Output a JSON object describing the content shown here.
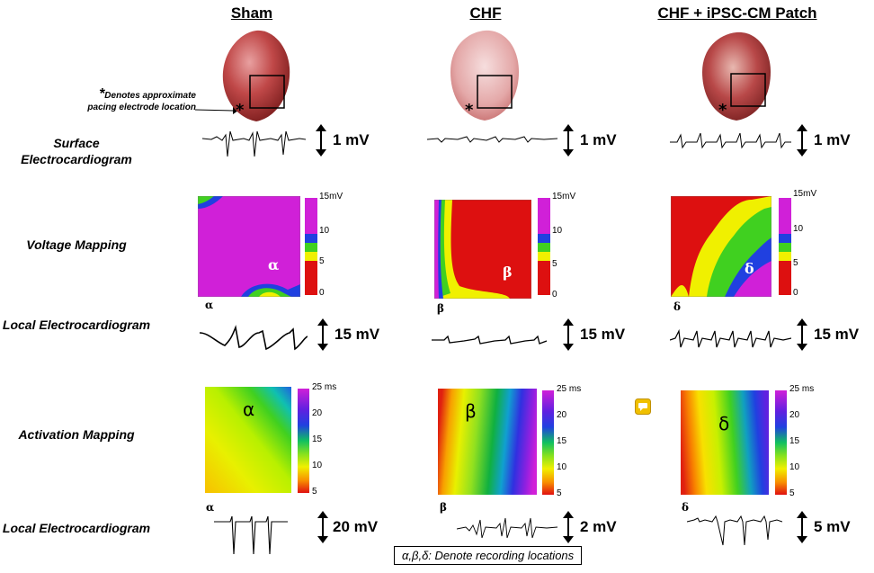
{
  "columns": [
    "Sham",
    "CHF",
    "CHF + iPSC-CM Patch"
  ],
  "rows": {
    "surface_ecg": "Surface Electrocardiogram",
    "voltage": "Voltage Mapping",
    "local_ecg_1": "Local Electrocardiogram",
    "activation": "Activation Mapping",
    "local_ecg_2": "Local Electrocardiogram"
  },
  "pacing_note_star": "*",
  "pacing_note": "Denotes approximate pacing electrode location",
  "surface_scales": [
    "1 mV",
    "1 mV",
    "1 mV"
  ],
  "local1_scales": [
    "15 mV",
    "15 mV",
    "15 mV"
  ],
  "local2_scales": [
    "20 mV",
    "2 mV",
    "5 mV"
  ],
  "location_labels": [
    "α",
    "β",
    "δ"
  ],
  "voltage_colorbar": {
    "unit": "mV",
    "ticks": [
      "15",
      "10",
      "5",
      "0"
    ]
  },
  "activation_colorbar": {
    "unit": "ms",
    "ticks": [
      "25",
      "20",
      "15",
      "10",
      "5"
    ]
  },
  "legend": "α,β,δ: Denote recording locations",
  "colors": {
    "magenta": "#d020d8",
    "red": "#dd1010",
    "yellow": "#f0f000",
    "green": "#40d020",
    "blue": "#2040e0",
    "heart": "#b83a3a"
  },
  "icons": [
    "comment-icon",
    "double-arrow-icon",
    "asterisk-icon"
  ]
}
